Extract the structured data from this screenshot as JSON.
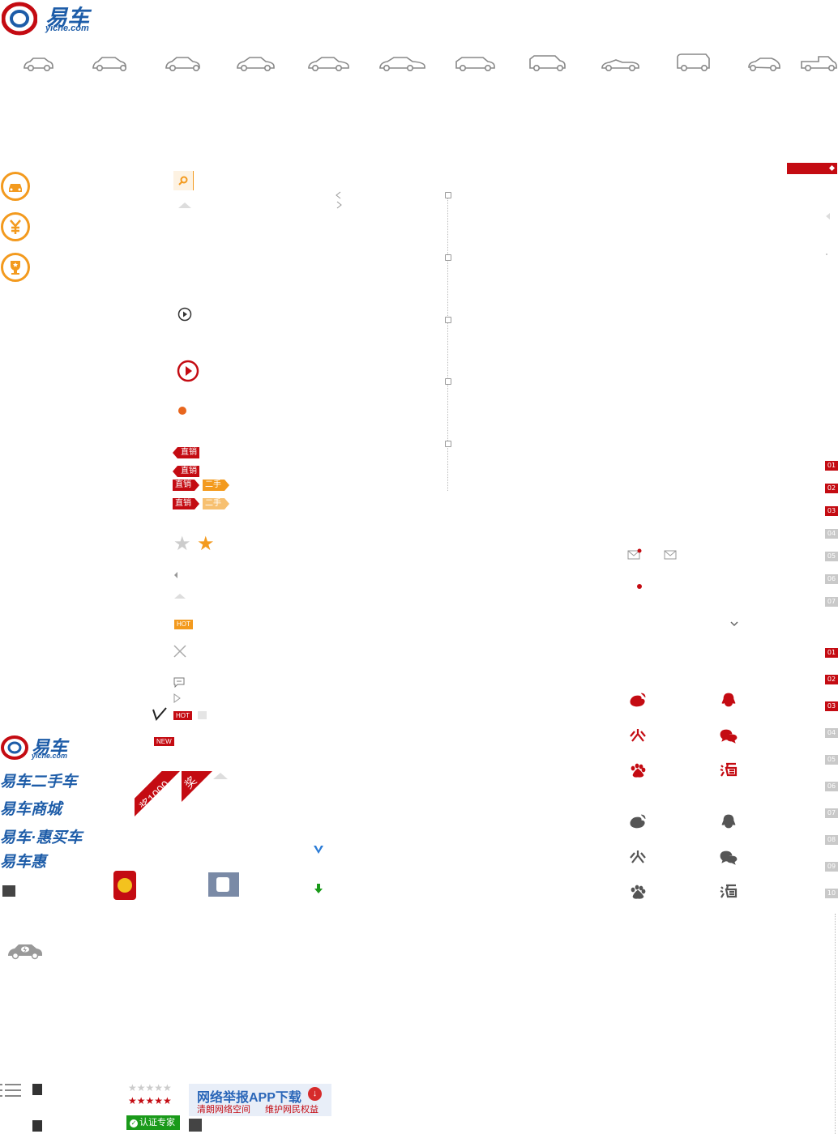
{
  "logo": {
    "main": "易车",
    "sub": "yiche.com"
  },
  "car_icons": [
    "car-icon-mini",
    "car-icon-small",
    "car-icon-compact",
    "car-icon-midsize",
    "car-icon-large",
    "car-icon-luxury",
    "car-icon-wagon",
    "car-icon-suv",
    "car-icon-convertible",
    "car-icon-mpv",
    "car-icon-sports",
    "car-icon-pickup"
  ],
  "tags": {
    "zhixiao": "直销",
    "ershou": "二手",
    "hot": "HOT",
    "new": "NEW"
  },
  "ribbons": {
    "reward_1000": "奖1000",
    "reward": "奖"
  },
  "brands": {
    "logo_main": "易车",
    "logo_sub": "yiche.com",
    "ershouche": "易车二手车",
    "shangcheng": "易车商城",
    "huimaiche": "易车·惠买车",
    "yichehui": "易车惠"
  },
  "number_tags_1": [
    "01",
    "02",
    "03",
    "04",
    "05",
    "06",
    "07"
  ],
  "number_tags_2": [
    "01",
    "02",
    "03",
    "04",
    "05",
    "06",
    "07",
    "08",
    "09",
    "10"
  ],
  "footer": {
    "report_title": "网络举报APP下载",
    "report_left": "清朗网络空间",
    "report_right": "维护网民权益",
    "expert": "认证专家"
  },
  "colors": {
    "accent_orange": "#f39a1e",
    "brand_red": "#c40b12",
    "brand_blue": "#1d5ca8"
  }
}
